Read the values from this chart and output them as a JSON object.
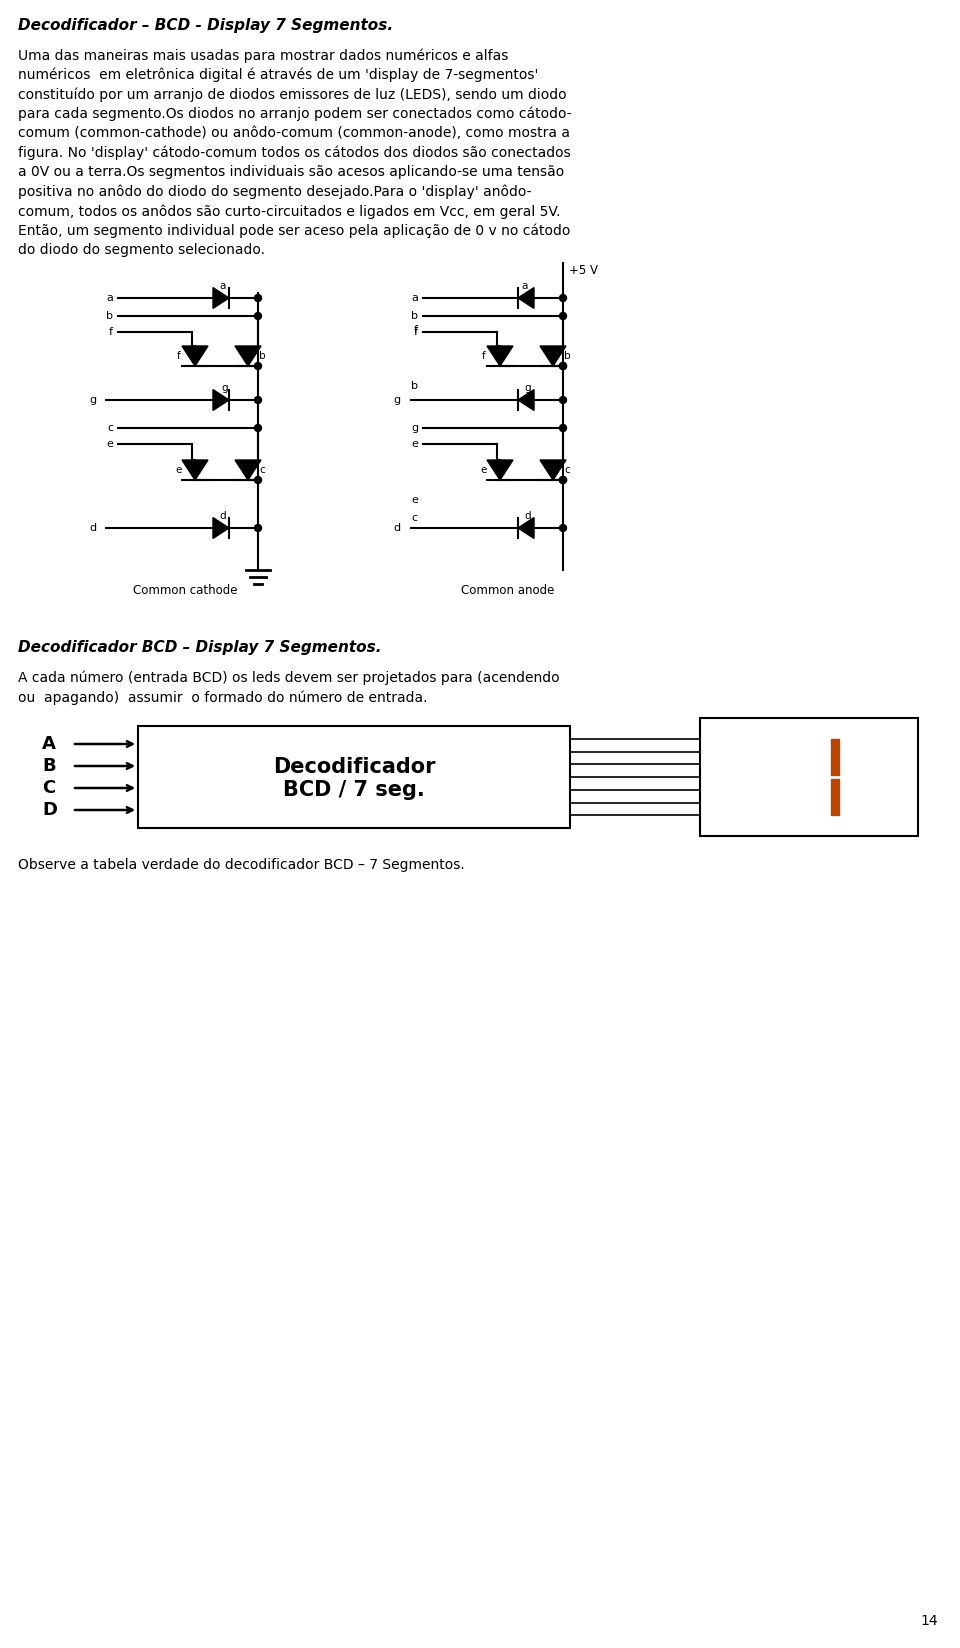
{
  "title1": "Decodificador – BCD - Display 7 Segmentos.",
  "title2": "Decodificador BCD – Display 7 Segmentos.",
  "p1_lines": [
    "Uma das maneiras mais usadas para mostrar dados numéricos e alfas",
    "numéricos  em eletrônica digital é através de um 'display de 7-segmentos'",
    "constituído por um arranjo de diodos emissores de luz (LEDS), sendo um diodo",
    "para cada segmento.Os diodos no arranjo podem ser conectados como cátodo-",
    "comum (common-cathode) ou anôdo-comum (common-anode), como mostra a",
    "figura. No 'display' cátodo-comum todos os cátodos dos diodos são conectados",
    "a 0V ou a terra.Os segmentos individuais são acesos aplicando-se uma tensão",
    "positiva no anôdo do diodo do segmento desejado.Para o 'display' anôdo-",
    "comum, todos os anôdos são curto-circuitados e ligados em Vcc, em geral 5V.",
    "Então, um segmento individual pode ser aceso pela aplicação de 0 v no cátodo",
    "do diodo do segmento selecionado."
  ],
  "p2_lines": [
    "A cada número (entrada BCD) os leds devem ser projetados para (acendendo",
    "ou  apagando)  assumir  o formado do número de entrada."
  ],
  "p3": "Observe a tabela verdade do decodificador BCD – 7 Segmentos.",
  "label_cc": "Common cathode",
  "label_ca": "Common anode",
  "label_plus5v": "+5 V",
  "decoder_line1": "Decodificador",
  "decoder_line2": "BCD / 7 seg.",
  "inputs": [
    "A",
    "B",
    "C",
    "D"
  ],
  "page_num": "14",
  "seg_color": "#bb4400",
  "bg": "#ffffff"
}
